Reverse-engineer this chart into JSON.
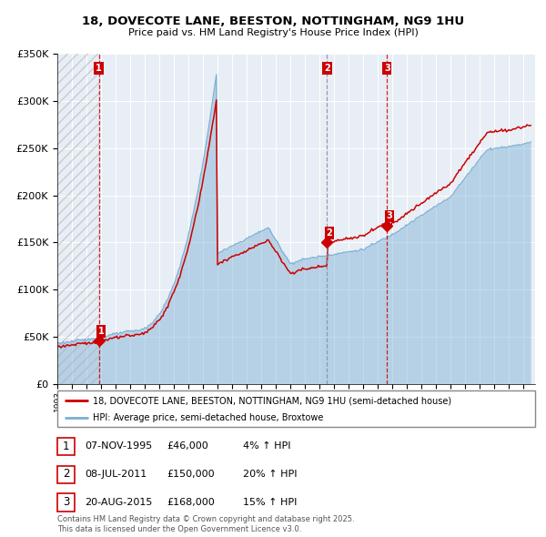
{
  "title": "18, DOVECOTE LANE, BEESTON, NOTTINGHAM, NG9 1HU",
  "subtitle": "Price paid vs. HM Land Registry's House Price Index (HPI)",
  "legend_line1": "18, DOVECOTE LANE, BEESTON, NOTTINGHAM, NG9 1HU (semi-detached house)",
  "legend_line2": "HPI: Average price, semi-detached house, Broxtowe",
  "table_rows": [
    {
      "num": "1",
      "date": "07-NOV-1995",
      "price": "£46,000",
      "change": "4% ↑ HPI"
    },
    {
      "num": "2",
      "date": "08-JUL-2011",
      "price": "£150,000",
      "change": "20% ↑ HPI"
    },
    {
      "num": "3",
      "date": "20-AUG-2015",
      "price": "£168,000",
      "change": "15% ↑ HPI"
    }
  ],
  "footer": "Contains HM Land Registry data © Crown copyright and database right 2025.\nThis data is licensed under the Open Government Licence v3.0.",
  "t_dates": [
    1995.845,
    2011.521,
    2015.635
  ],
  "t_prices": [
    46000,
    150000,
    168000
  ],
  "hpi_color": "#7bafd4",
  "price_color": "#cc0000",
  "vline_colors": [
    "#cc0000",
    "#8888aa",
    "#cc0000"
  ],
  "vline_styles": [
    "--",
    "--",
    "--"
  ],
  "ylim": [
    0,
    350000
  ],
  "yticks": [
    0,
    50000,
    100000,
    150000,
    200000,
    250000,
    300000,
    350000
  ],
  "xlim": [
    1993.0,
    2025.8
  ],
  "background_color": "#ffffff",
  "plot_bg_color": "#e8eef5"
}
